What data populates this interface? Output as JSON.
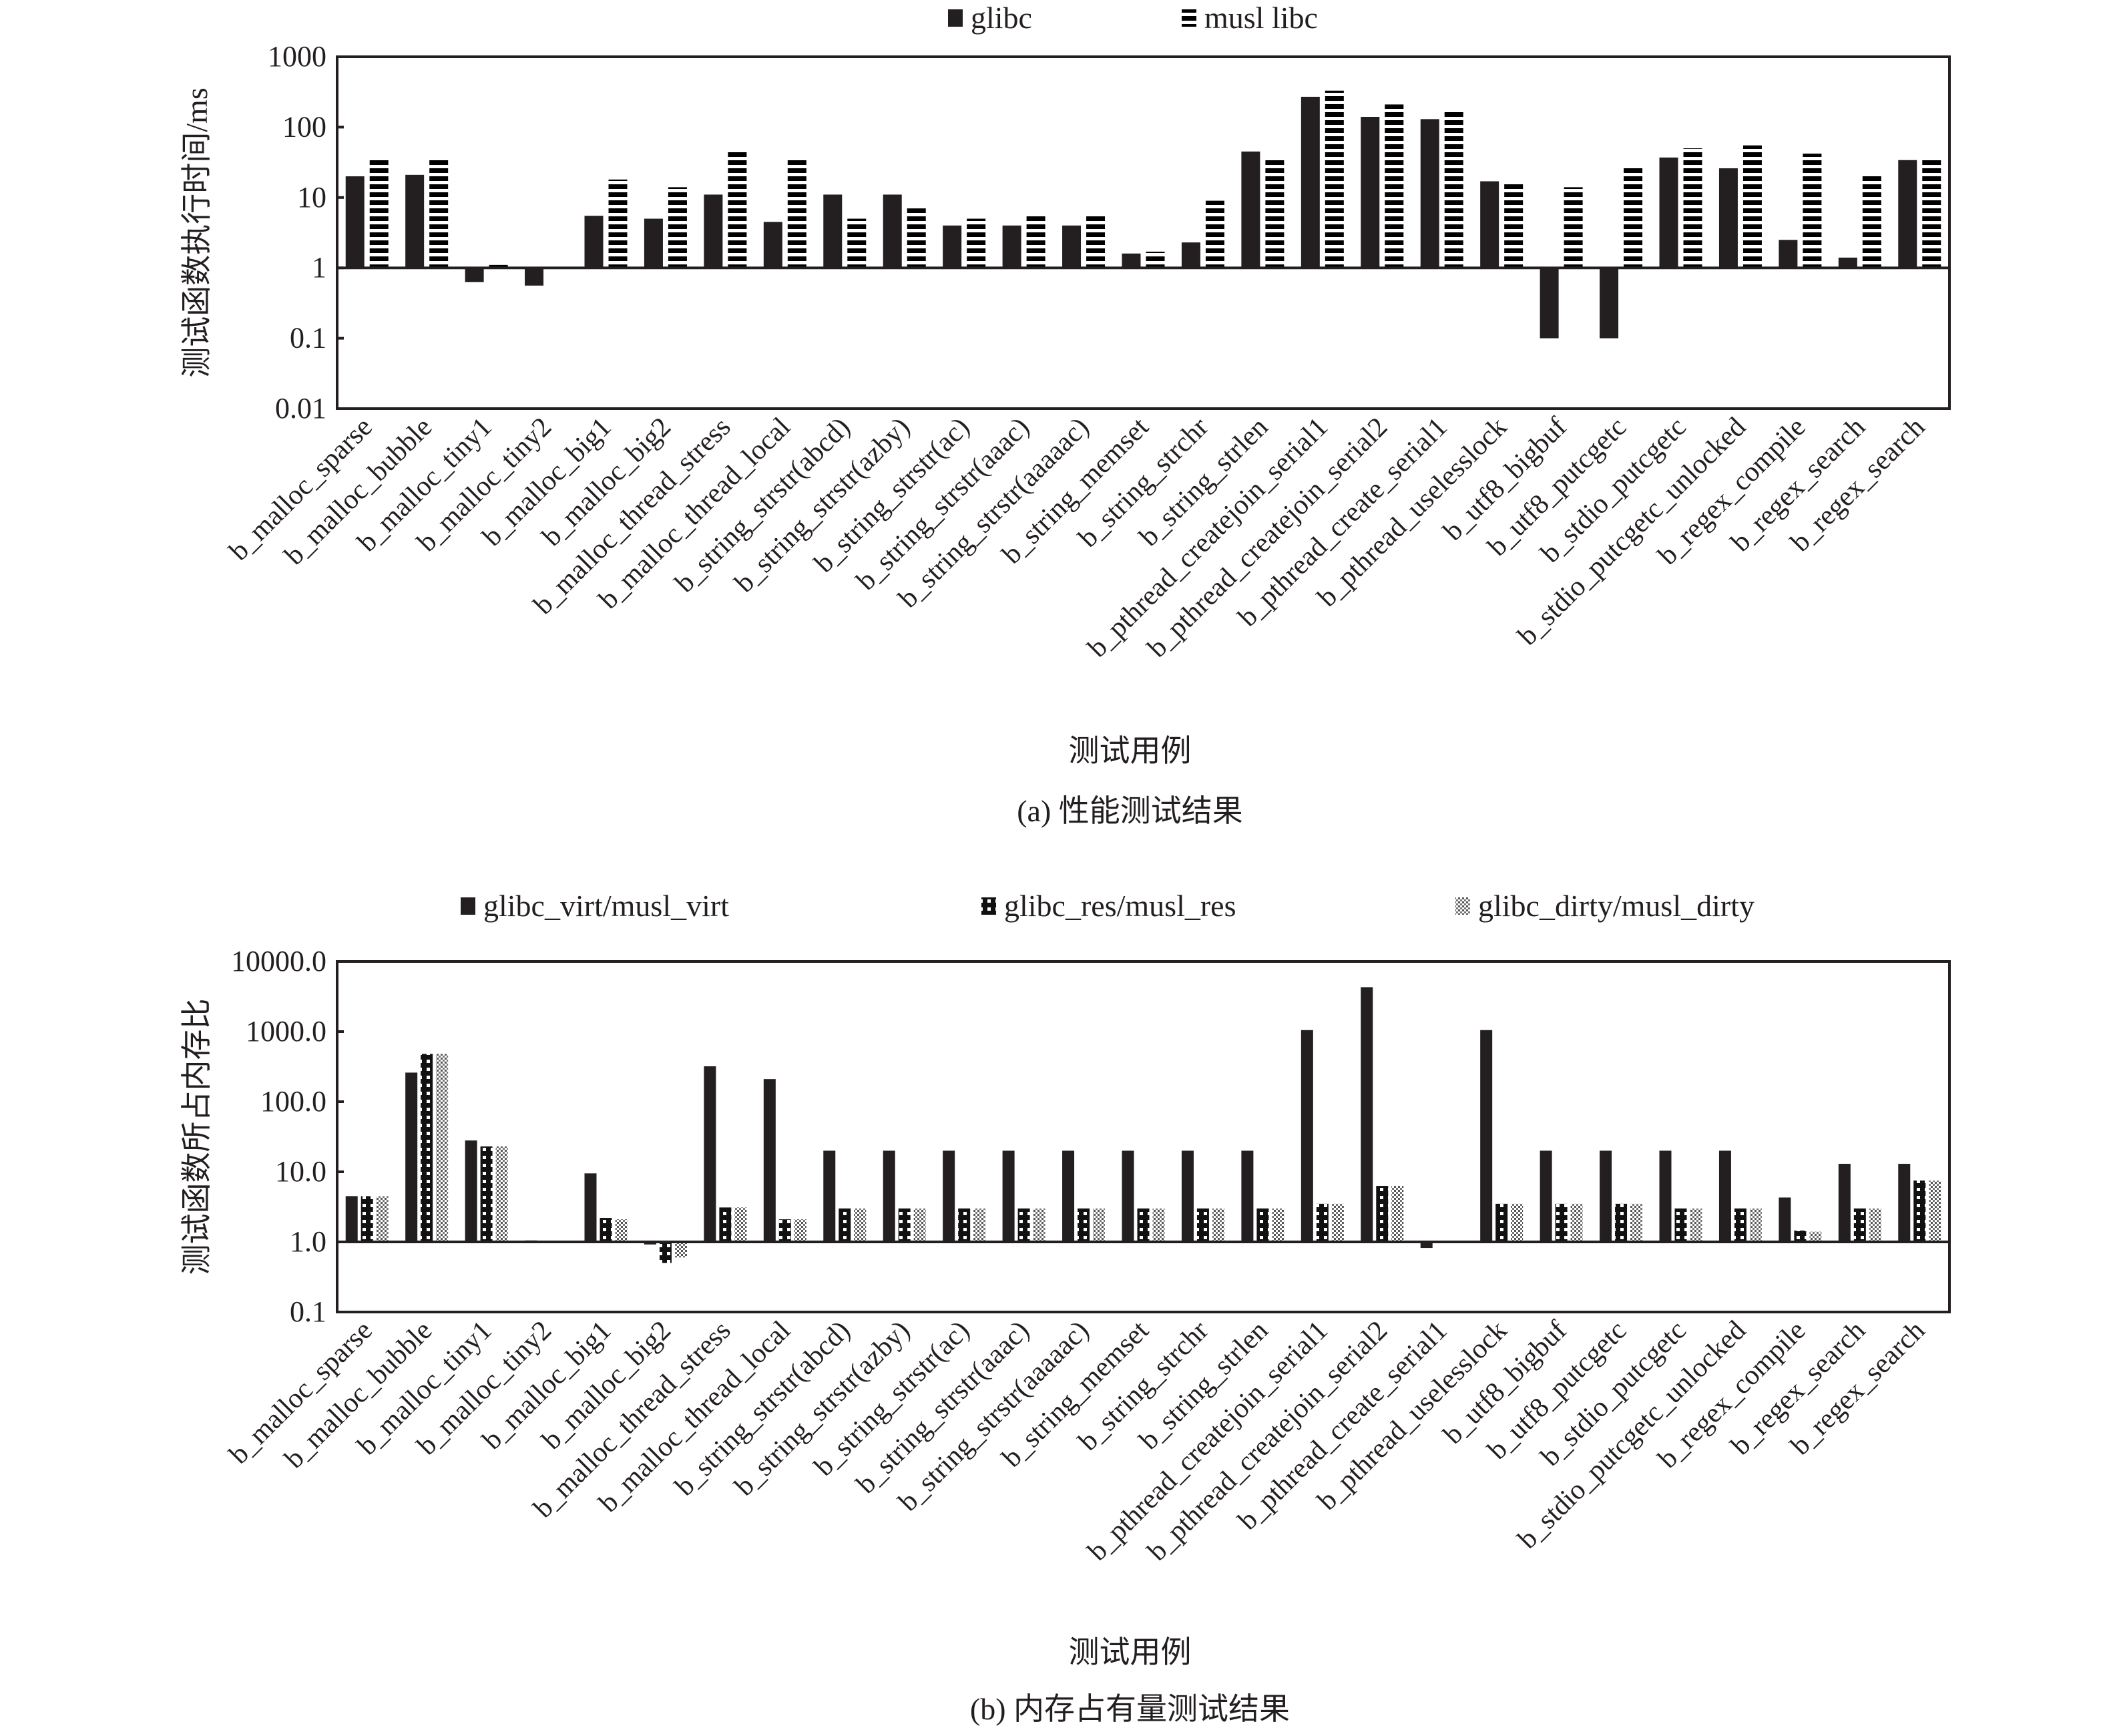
{
  "chart_data": [
    {
      "type": "bar",
      "title": "",
      "caption": "(a)  性能测试结果",
      "xlabel": "测试用例",
      "ylabel": "测试函数执行时间/ms",
      "yscale": "log",
      "ylim": [
        0.01,
        1000
      ],
      "baseline": 1,
      "yticks": [
        "0.01",
        "0.1",
        "1",
        "10",
        "100",
        "1000"
      ],
      "legend_position": "top",
      "grid": false,
      "categories": [
        "b_malloc_sparse",
        "b_malloc_bubble",
        "b_malloc_tiny1",
        "b_malloc_tiny2",
        "b_malloc_big1",
        "b_malloc_big2",
        "b_malloc_thread_stress",
        "b_malloc_thread_local",
        "b_string_strstr(abcd)",
        "b_string_strstr(azby)",
        "b_string_strstr(ac)",
        "b_string_strstr(aaac)",
        "b_string_strstr(aaaaac)",
        "b_string_memset",
        "b_string_strchr",
        "b_string_strlen",
        "b_pthread_createjoin_serial1",
        "b_pthread_createjoin_serial2",
        "b_pthread_create_serial1",
        "b_pthread_uselesslock",
        "b_utf8_bigbuf",
        "b_utf8_putcgetc",
        "b_stdio_putcgetc",
        "b_stdio_putcgetc_unlocked",
        "b_regex_compile",
        "b_regex_search",
        "b_regex_search"
      ],
      "series": [
        {
          "name": "glibc",
          "pattern": "solid",
          "values": [
            20,
            21,
            0.63,
            0.56,
            5.5,
            5,
            11,
            4.5,
            11,
            11,
            4,
            4,
            4,
            1.6,
            2.3,
            45,
            270,
            140,
            130,
            17,
            0.1,
            0.1,
            37,
            26,
            2.5,
            1.4,
            34
          ]
        },
        {
          "name": "musl libc",
          "pattern": "horizontal-stripes",
          "values": [
            35,
            35,
            1.1,
            1.0,
            18,
            14,
            45,
            35,
            5,
            7,
            5,
            5.5,
            5.5,
            1.7,
            9,
            35,
            330,
            210,
            170,
            17,
            14,
            28,
            50,
            55,
            42,
            21,
            37
          ]
        }
      ]
    },
    {
      "type": "bar",
      "title": "",
      "caption": "(b)  内存占有量测试结果",
      "xlabel": "测试用例",
      "ylabel": "测试函数所占内存比",
      "yscale": "log",
      "ylim": [
        0.1,
        10000
      ],
      "baseline": 1,
      "yticks": [
        "0.1",
        "1.0",
        "10.0",
        "100.0",
        "1000.0",
        "10000.0"
      ],
      "legend_position": "top",
      "grid": false,
      "categories": [
        "b_malloc_sparse",
        "b_malloc_bubble",
        "b_malloc_tiny1",
        "b_malloc_tiny2",
        "b_malloc_big1",
        "b_malloc_big2",
        "b_malloc_thread_stress",
        "b_malloc_thread_local",
        "b_string_strstr(abcd)",
        "b_string_strstr(azby)",
        "b_string_strstr(ac)",
        "b_string_strstr(aaac)",
        "b_string_strstr(aaaaac)",
        "b_string_memset",
        "b_string_strchr",
        "b_string_strlen",
        "b_pthread_createjoin_serial1",
        "b_pthread_createjoin_serial2",
        "b_pthread_create_serial1",
        "b_pthread_uselesslock",
        "b_utf8_bigbuf",
        "b_utf8_putcgetc",
        "b_stdio_putcgetc",
        "b_stdio_putcgetc_unlocked",
        "b_regex_compile",
        "b_regex_search",
        "b_regex_search"
      ],
      "series": [
        {
          "name": "glibc_virt/musl_virt",
          "pattern": "solid",
          "values": [
            4.5,
            260,
            28,
            1.05,
            9.5,
            0.92,
            320,
            210,
            20,
            20,
            20,
            20,
            20,
            20,
            20,
            20,
            1050,
            4300,
            0.82,
            1050,
            20,
            20,
            20,
            20,
            4.3,
            13,
            13
          ]
        },
        {
          "name": "glibc_res/musl_res",
          "pattern": "checker",
          "values": [
            4.5,
            480,
            23,
            0.96,
            2.2,
            0.5,
            3.1,
            2.1,
            3,
            3,
            3,
            3,
            3,
            3,
            3,
            3,
            3.5,
            6.3,
            1.03,
            3.5,
            3.5,
            3.5,
            3,
            3,
            1.45,
            3,
            7.5
          ]
        },
        {
          "name": "glibc_dirty/musl_dirty",
          "pattern": "fine-grid",
          "values": [
            4.5,
            480,
            23,
            0.96,
            2.1,
            0.6,
            3.1,
            2.1,
            3,
            3,
            3,
            3,
            3,
            3,
            3,
            3,
            3.5,
            6.3,
            1.03,
            3.5,
            3.5,
            3.5,
            3,
            3,
            1.4,
            3,
            7.5
          ]
        }
      ]
    }
  ]
}
